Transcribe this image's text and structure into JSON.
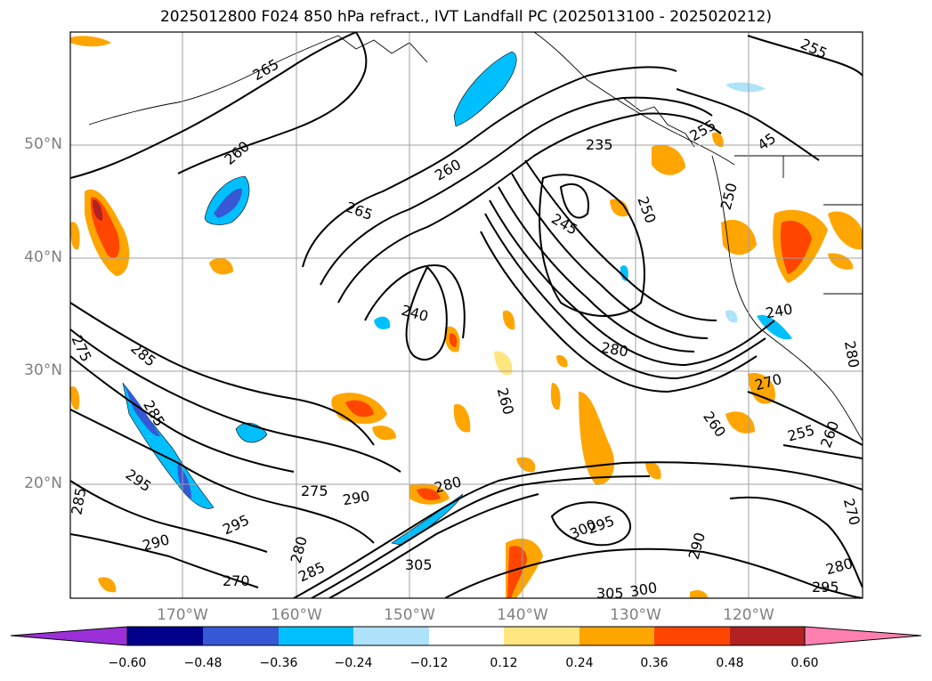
{
  "title": "2025012800 F024 850 hPa refract., IVT Landfall PC (2025013100 - 2025020212)",
  "lat_labels": [
    "50°N",
    "40°N",
    "30°N",
    "20°N"
  ],
  "lon_labels": [
    "170°W",
    "160°W",
    "150°W",
    "140°W",
    "130°W",
    "120°W"
  ],
  "contour_labels": [
    "265",
    "260",
    "260",
    "255",
    "265",
    "240",
    "235",
    "245",
    "250",
    "255",
    "45",
    "250",
    "240",
    "280",
    "275",
    "285",
    "260",
    "270",
    "260",
    "255",
    "260",
    "280",
    "285",
    "295",
    "285",
    "275",
    "290",
    "280",
    "295",
    "290",
    "280",
    "270",
    "285",
    "305",
    "300",
    "295",
    "290",
    "305",
    "300",
    "280",
    "295",
    "270"
  ],
  "colorbar": {
    "ticks": [
      "−0.60",
      "−0.48",
      "−0.36",
      "−0.24",
      "−0.12",
      "0.12",
      "0.24",
      "0.36",
      "0.48",
      "0.60"
    ],
    "colors": [
      "#9b30d9",
      "#00008b",
      "#3658d4",
      "#00bfff",
      "#aee3fb",
      "#ffffff",
      "#ffe680",
      "#ffa500",
      "#ff4500",
      "#b22222",
      "#ff80b0"
    ]
  },
  "colors": {
    "negative_fill": "#00bfff",
    "positive_fill": "#ffa500",
    "strong_positive": "#ff4500",
    "contour": "#000000",
    "grid": "#a0a0a0"
  }
}
